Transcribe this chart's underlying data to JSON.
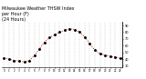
{
  "hours": [
    0,
    1,
    2,
    3,
    4,
    5,
    6,
    7,
    8,
    9,
    10,
    11,
    12,
    13,
    14,
    15,
    16,
    17,
    18,
    19,
    20,
    21,
    22,
    23
  ],
  "values": [
    42,
    40,
    38,
    37,
    36,
    38,
    45,
    55,
    65,
    72,
    76,
    80,
    83,
    85,
    84,
    80,
    73,
    63,
    53,
    48,
    46,
    44,
    43,
    41
  ],
  "line_color": "#cc0000",
  "marker_color": "#000000",
  "bg_color": "#ffffff",
  "grid_color": "#888888",
  "title_line1": "Milwaukee Weather THSW Index",
  "title_line2": "per Hour (F)",
  "title_line3": "(24 Hours)",
  "title_fontsize": 3.5,
  "ylim": [
    28,
    95
  ],
  "xlim": [
    -0.5,
    23.5
  ],
  "yticks": [
    30,
    40,
    50,
    60,
    70,
    80,
    90
  ],
  "xtick_labels": [
    "0",
    "1",
    "2",
    "3",
    "4",
    "5",
    "6",
    "7",
    "8",
    "9",
    "10",
    "11",
    "12",
    "13",
    "14",
    "15",
    "16",
    "17",
    "18",
    "19",
    "20",
    "21",
    "22",
    "23"
  ]
}
